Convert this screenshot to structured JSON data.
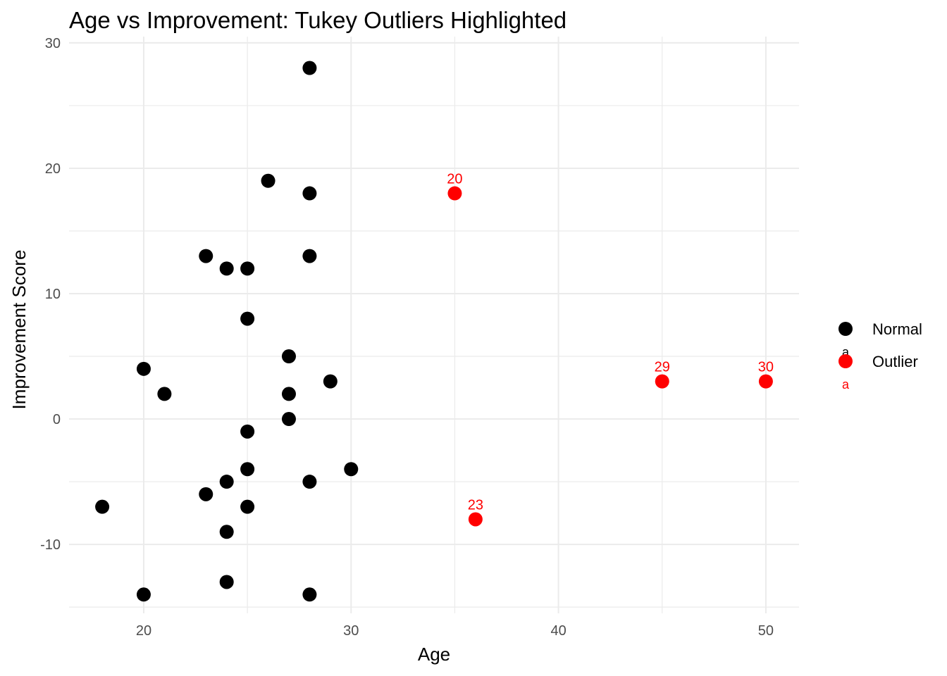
{
  "colors": {
    "normal": "#000000",
    "outlier": "#ff0000"
  },
  "chart_data": {
    "type": "scatter",
    "title": "Age vs Improvement: Tukey Outliers Highlighted",
    "xlabel": "Age",
    "ylabel": "Improvement Score",
    "xlim": [
      16.4,
      51.6
    ],
    "ylim": [
      -15.5,
      30.5
    ],
    "xticks": [
      20,
      30,
      40,
      50
    ],
    "yticks": [
      -10,
      0,
      10,
      20,
      30
    ],
    "grid": true,
    "legend": {
      "position": "right",
      "key_glyph": "a",
      "entries": [
        {
          "name": "Normal",
          "color": "#000000"
        },
        {
          "name": "Outlier",
          "color": "#ff0000"
        }
      ]
    },
    "series": [
      {
        "name": "Normal",
        "color": "#000000",
        "points": [
          {
            "x": 28,
            "y": 28
          },
          {
            "x": 26,
            "y": 19
          },
          {
            "x": 28,
            "y": 18
          },
          {
            "x": 23,
            "y": 13
          },
          {
            "x": 28,
            "y": 13
          },
          {
            "x": 24,
            "y": 12
          },
          {
            "x": 25,
            "y": 12
          },
          {
            "x": 25,
            "y": 8
          },
          {
            "x": 27,
            "y": 5
          },
          {
            "x": 20,
            "y": 4
          },
          {
            "x": 29,
            "y": 3
          },
          {
            "x": 21,
            "y": 2
          },
          {
            "x": 27,
            "y": 2
          },
          {
            "x": 27,
            "y": 0
          },
          {
            "x": 25,
            "y": -1
          },
          {
            "x": 25,
            "y": -4
          },
          {
            "x": 30,
            "y": -4
          },
          {
            "x": 24,
            "y": -5
          },
          {
            "x": 28,
            "y": -5
          },
          {
            "x": 23,
            "y": -6
          },
          {
            "x": 18,
            "y": -7
          },
          {
            "x": 25,
            "y": -7
          },
          {
            "x": 24,
            "y": -9
          },
          {
            "x": 24,
            "y": -13
          },
          {
            "x": 20,
            "y": -14
          },
          {
            "x": 28,
            "y": -14
          }
        ]
      },
      {
        "name": "Outlier",
        "color": "#ff0000",
        "points": [
          {
            "x": 35,
            "y": 18,
            "label": "20"
          },
          {
            "x": 36,
            "y": -8,
            "label": "23"
          },
          {
            "x": 45,
            "y": 3,
            "label": "29"
          },
          {
            "x": 50,
            "y": 3,
            "label": "30"
          }
        ]
      }
    ]
  }
}
